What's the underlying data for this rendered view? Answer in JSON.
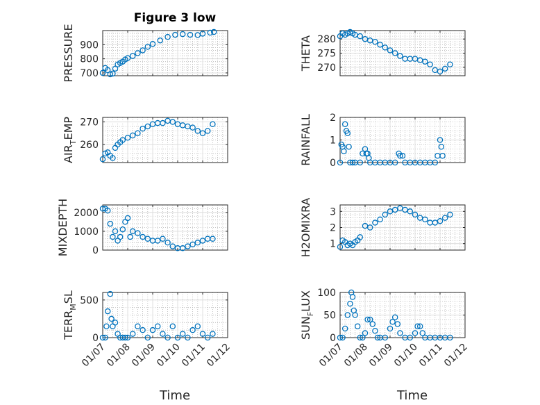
{
  "figure_title": "Figure 3 low",
  "xlabel": "Time",
  "x_tick_labels": [
    "01/07",
    "01/08",
    "01/09",
    "01/10",
    "01/11",
    "01/12"
  ],
  "chart_data": [
    {
      "type": "scatter",
      "title": "Figure 3 low",
      "ylabel": "PRESSURE",
      "ylim": [
        680,
        1000
      ],
      "yticks": [
        700,
        800,
        900
      ],
      "grid": true,
      "x": [
        7.0,
        7.1,
        7.2,
        7.3,
        7.4,
        7.5,
        7.6,
        7.7,
        7.8,
        7.9,
        8.0,
        8.2,
        8.4,
        8.6,
        8.8,
        9.0,
        9.3,
        9.6,
        9.9,
        10.2,
        10.5,
        10.8,
        11.0,
        11.3,
        11.45
      ],
      "values": [
        700,
        735,
        720,
        690,
        695,
        730,
        760,
        770,
        780,
        795,
        805,
        820,
        840,
        860,
        885,
        905,
        930,
        955,
        970,
        975,
        970,
        968,
        978,
        985,
        990
      ]
    },
    {
      "type": "scatter",
      "title": "",
      "ylabel": "THETA",
      "ylim": [
        267,
        283
      ],
      "yticks": [
        270,
        275,
        280
      ],
      "grid": true,
      "x": [
        7.0,
        7.1,
        7.2,
        7.3,
        7.4,
        7.5,
        7.6,
        7.8,
        8.0,
        8.2,
        8.4,
        8.6,
        8.8,
        9.0,
        9.2,
        9.4,
        9.6,
        9.8,
        10.0,
        10.2,
        10.4,
        10.6,
        10.8,
        11.0,
        11.2,
        11.4
      ],
      "values": [
        281,
        282,
        281.5,
        282,
        282.5,
        282,
        281.5,
        281,
        280,
        279.5,
        279,
        278,
        277,
        276,
        275,
        274,
        273,
        273,
        273,
        272.5,
        272,
        271,
        269,
        268.5,
        269.5,
        271
      ]
    },
    {
      "type": "scatter",
      "title": "",
      "ylabel": "AIR_TEMP",
      "ylim": [
        252,
        272
      ],
      "yticks": [
        260,
        270
      ],
      "grid": true,
      "x": [
        7.0,
        7.1,
        7.2,
        7.3,
        7.4,
        7.5,
        7.6,
        7.7,
        7.8,
        8.0,
        8.2,
        8.4,
        8.6,
        8.8,
        9.0,
        9.2,
        9.4,
        9.6,
        9.8,
        10.0,
        10.2,
        10.4,
        10.6,
        10.8,
        11.0,
        11.2,
        11.4
      ],
      "values": [
        253.5,
        256,
        256.5,
        255,
        254,
        258.5,
        260,
        261,
        262,
        263,
        264,
        265,
        267,
        268,
        269,
        269.5,
        269.5,
        270.5,
        270,
        269,
        268.5,
        268,
        267.5,
        266,
        265,
        266,
        269
      ]
    },
    {
      "type": "scatter",
      "title": "",
      "ylabel": "RAINFALL",
      "ylim": [
        0,
        2
      ],
      "yticks": [
        0,
        1,
        2
      ],
      "grid": true,
      "x": [
        7.0,
        7.05,
        7.1,
        7.15,
        7.2,
        7.25,
        7.3,
        7.35,
        7.4,
        7.5,
        7.6,
        7.8,
        7.9,
        8.0,
        8.05,
        8.1,
        8.15,
        8.2,
        8.4,
        8.6,
        8.8,
        9.0,
        9.2,
        9.35,
        9.4,
        9.5,
        9.6,
        9.8,
        10.0,
        10.2,
        10.4,
        10.6,
        10.8,
        10.9,
        11.0,
        11.05,
        11.1
      ],
      "values": [
        0,
        0.8,
        0.7,
        0.5,
        1.7,
        1.4,
        1.3,
        0.7,
        0,
        0,
        0,
        0,
        0.4,
        0.6,
        0.4,
        0.4,
        0.2,
        0,
        0,
        0,
        0,
        0,
        0,
        0.4,
        0.3,
        0.3,
        0,
        0,
        0,
        0,
        0,
        0,
        0,
        0.3,
        1.0,
        0.7,
        0.3
      ]
    },
    {
      "type": "scatter",
      "title": "",
      "ylabel": "MIXDEPTH",
      "ylim": [
        0,
        2400
      ],
      "yticks": [
        0,
        1000,
        2000
      ],
      "grid": true,
      "x": [
        7.0,
        7.1,
        7.2,
        7.3,
        7.4,
        7.5,
        7.6,
        7.7,
        7.8,
        7.9,
        8.0,
        8.1,
        8.2,
        8.4,
        8.6,
        8.8,
        9.0,
        9.2,
        9.4,
        9.6,
        9.8,
        10.0,
        10.2,
        10.4,
        10.6,
        10.8,
        11.0,
        11.2,
        11.4
      ],
      "values": [
        2200,
        2200,
        2100,
        1400,
        700,
        1000,
        500,
        700,
        1100,
        1500,
        1700,
        700,
        1000,
        900,
        700,
        600,
        500,
        500,
        600,
        400,
        200,
        100,
        100,
        200,
        300,
        400,
        500,
        600,
        600
      ]
    },
    {
      "type": "scatter",
      "title": "",
      "ylabel": "H2OMIXRA",
      "ylim": [
        0.6,
        3.4
      ],
      "yticks": [
        1,
        2,
        3
      ],
      "grid": true,
      "x": [
        7.0,
        7.1,
        7.2,
        7.3,
        7.4,
        7.5,
        7.6,
        7.7,
        7.8,
        8.0,
        8.2,
        8.4,
        8.6,
        8.8,
        9.0,
        9.2,
        9.4,
        9.6,
        9.8,
        10.0,
        10.2,
        10.4,
        10.6,
        10.8,
        11.0,
        11.2,
        11.4
      ],
      "values": [
        0.8,
        1.2,
        1.1,
        0.9,
        1.0,
        0.9,
        1.1,
        1.2,
        1.4,
        2.1,
        2.0,
        2.3,
        2.5,
        2.8,
        3.0,
        3.1,
        3.2,
        3.1,
        3.0,
        2.8,
        2.6,
        2.5,
        2.3,
        2.3,
        2.4,
        2.6,
        2.8
      ]
    },
    {
      "type": "scatter",
      "title": "",
      "ylabel": "TERR_MSL",
      "ylim": [
        0,
        600
      ],
      "yticks": [
        0,
        500
      ],
      "grid": true,
      "x": [
        7.0,
        7.1,
        7.15,
        7.2,
        7.3,
        7.35,
        7.4,
        7.5,
        7.6,
        7.7,
        7.8,
        7.9,
        8.0,
        8.2,
        8.4,
        8.6,
        8.8,
        9.0,
        9.2,
        9.4,
        9.6,
        9.8,
        10.0,
        10.2,
        10.4,
        10.6,
        10.8,
        11.0,
        11.2,
        11.4
      ],
      "values": [
        0,
        0,
        150,
        350,
        580,
        250,
        150,
        200,
        50,
        0,
        0,
        0,
        0,
        50,
        150,
        100,
        0,
        100,
        150,
        50,
        0,
        150,
        0,
        50,
        0,
        100,
        150,
        50,
        0,
        50
      ]
    },
    {
      "type": "scatter",
      "title": "",
      "ylabel": "SUN_FLUX",
      "ylim": [
        0,
        100
      ],
      "yticks": [
        0,
        50,
        100
      ],
      "grid": true,
      "x": [
        7.0,
        7.1,
        7.2,
        7.3,
        7.4,
        7.45,
        7.5,
        7.55,
        7.6,
        7.7,
        7.8,
        7.9,
        8.0,
        8.1,
        8.2,
        8.3,
        8.4,
        8.5,
        8.6,
        8.8,
        9.0,
        9.1,
        9.2,
        9.3,
        9.4,
        9.6,
        9.8,
        10.0,
        10.1,
        10.2,
        10.3,
        10.4,
        10.6,
        10.8,
        11.0,
        11.2,
        11.4
      ],
      "values": [
        0,
        0,
        20,
        50,
        75,
        100,
        90,
        60,
        50,
        25,
        0,
        0,
        10,
        40,
        40,
        30,
        15,
        0,
        0,
        0,
        20,
        35,
        45,
        30,
        10,
        0,
        0,
        10,
        25,
        25,
        10,
        0,
        0,
        0,
        0,
        0,
        0
      ]
    }
  ]
}
